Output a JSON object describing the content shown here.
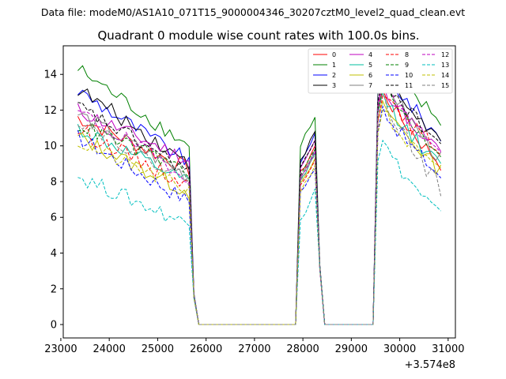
{
  "suptitle": "Data file: modeM0/AS1A10_071T15_9000004346_30207cztM0_level2_quad_clean.evt",
  "chart_data": {
    "type": "line",
    "title": "Quadrant 0 module wise count rates with 100.0s bins.",
    "xlabel": "",
    "ylabel": "",
    "offset_label": "+3.574e8",
    "xlim": [
      23050,
      31150
    ],
    "ylim": [
      -0.75,
      15.6
    ],
    "xticks": [
      23000,
      24000,
      25000,
      26000,
      27000,
      28000,
      29000,
      30000,
      31000
    ],
    "xtick_labels": [
      "23000",
      "24000",
      "25000",
      "26000",
      "27000",
      "28000",
      "29000",
      "30000",
      "31000"
    ],
    "yticks": [
      0,
      2,
      4,
      6,
      8,
      10,
      12,
      14
    ],
    "ytick_labels": [
      "0",
      "2",
      "4",
      "6",
      "8",
      "10",
      "12",
      "14"
    ],
    "legend_position": "upper-right",
    "x_segments": [
      {
        "start": 23350,
        "end": 25650,
        "step": 100,
        "first_rise": 0
      },
      {
        "start": 25750,
        "end": 27850,
        "step": 100
      },
      {
        "start": 27950,
        "end": 28250,
        "step": 100,
        "peak": 28250
      },
      {
        "start": 28350,
        "end": 29450,
        "step": 100
      },
      {
        "start": 29550,
        "end": 30850,
        "step": 100
      }
    ],
    "segment_a": {
      "x_start": 23350,
      "x_end": 25650
    },
    "segment_b": {
      "rise_start": 27850,
      "peak_x": 28250,
      "fall_end": 28450
    },
    "segment_c": {
      "rise_start": 29450,
      "peak_x": 29650,
      "x_end": 30850
    },
    "series": [
      {
        "name": "0",
        "color": "#ff0000",
        "dash": false,
        "a": [
          11.6,
          8.7
        ],
        "b": [
          8.9,
          10.0
        ],
        "c": [
          13.2,
          9.0
        ]
      },
      {
        "name": "1",
        "color": "#008000",
        "dash": false,
        "a": [
          14.3,
          10.0
        ],
        "b": [
          10.6,
          11.6
        ],
        "c": [
          14.8,
          11.4
        ]
      },
      {
        "name": "2",
        "color": "#0000ff",
        "dash": false,
        "a": [
          13.1,
          9.1
        ],
        "b": [
          9.6,
          10.7
        ],
        "c": [
          14.6,
          10.4
        ]
      },
      {
        "name": "3",
        "color": "#000000",
        "dash": false,
        "a": [
          13.2,
          9.0
        ],
        "b": [
          9.7,
          10.8
        ],
        "c": [
          14.2,
          10.3
        ]
      },
      {
        "name": "4",
        "color": "#bf00bf",
        "dash": false,
        "a": [
          12.0,
          9.2
        ],
        "b": [
          9.2,
          10.3
        ],
        "c": [
          13.6,
          9.6
        ]
      },
      {
        "name": "5",
        "color": "#00bf9f",
        "dash": false,
        "a": [
          11.0,
          7.9
        ],
        "b": [
          8.5,
          9.6
        ],
        "c": [
          13.0,
          8.8
        ]
      },
      {
        "name": "6",
        "color": "#bfbf00",
        "dash": false,
        "a": [
          10.5,
          7.4
        ],
        "b": [
          8.2,
          9.3
        ],
        "c": [
          12.5,
          8.6
        ]
      },
      {
        "name": "7",
        "color": "#808080",
        "dash": false,
        "a": [
          11.8,
          8.3
        ],
        "b": [
          8.7,
          9.8
        ],
        "c": [
          14.2,
          9.2
        ]
      },
      {
        "name": "8",
        "color": "#ff0000",
        "dash": true,
        "a": [
          10.9,
          7.8
        ],
        "b": [
          8.3,
          9.2
        ],
        "c": [
          12.8,
          9.8
        ]
      },
      {
        "name": "9",
        "color": "#008000",
        "dash": true,
        "a": [
          11.2,
          8.6
        ],
        "b": [
          8.8,
          9.8
        ],
        "c": [
          13.4,
          9.6
        ]
      },
      {
        "name": "10",
        "color": "#0000ff",
        "dash": true,
        "a": [
          10.5,
          6.9
        ],
        "b": [
          7.8,
          8.7
        ],
        "c": [
          12.2,
          8.3
        ]
      },
      {
        "name": "11",
        "color": "#000000",
        "dash": true,
        "a": [
          12.2,
          8.6
        ],
        "b": [
          9.2,
          10.3
        ],
        "c": [
          14.0,
          10.1
        ]
      },
      {
        "name": "12",
        "color": "#bf00bf",
        "dash": true,
        "a": [
          11.9,
          8.3
        ],
        "b": [
          8.6,
          9.7
        ],
        "c": [
          13.6,
          9.5
        ]
      },
      {
        "name": "13",
        "color": "#00bfbf",
        "dash": true,
        "a": [
          8.3,
          5.6
        ],
        "b": [
          6.3,
          7.6
        ],
        "c": [
          10.3,
          6.1
        ]
      },
      {
        "name": "14",
        "color": "#bfbf00",
        "dash": true,
        "a": [
          10.2,
          7.5
        ],
        "b": [
          7.9,
          8.9
        ],
        "c": [
          12.0,
          8.4
        ]
      },
      {
        "name": "15",
        "color": "#808080",
        "dash": true,
        "a": [
          11.5,
          8.1
        ],
        "b": [
          8.5,
          9.5
        ],
        "c": [
          13.1,
          7.6
        ]
      }
    ]
  }
}
